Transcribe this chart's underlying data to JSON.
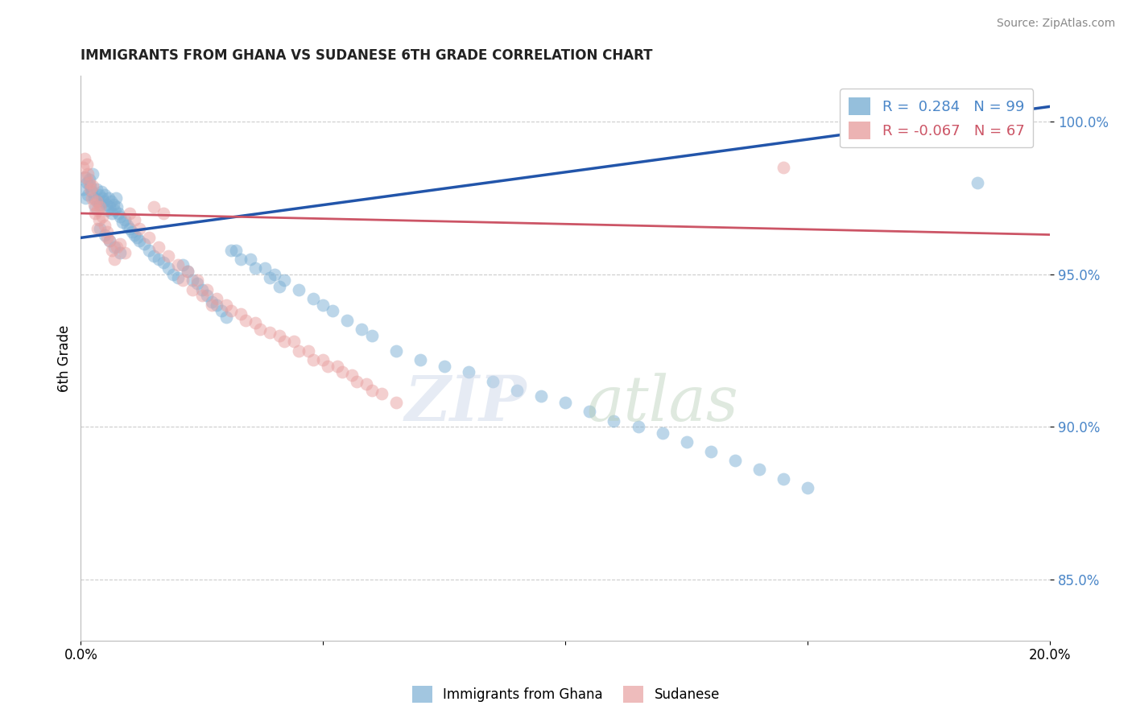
{
  "title": "IMMIGRANTS FROM GHANA VS SUDANESE 6TH GRADE CORRELATION CHART",
  "source": "Source: ZipAtlas.com",
  "ylabel": "6th Grade",
  "xlim": [
    0.0,
    20.0
  ],
  "ylim": [
    83.0,
    101.5
  ],
  "yticks": [
    85.0,
    90.0,
    95.0,
    100.0
  ],
  "ytick_labels": [
    "85.0%",
    "90.0%",
    "95.0%",
    "100.0%"
  ],
  "R_blue": 0.284,
  "N_blue": 99,
  "R_pink": -0.067,
  "N_pink": 67,
  "blue_color": "#7bafd4",
  "pink_color": "#e8a0a0",
  "blue_line_color": "#2255aa",
  "pink_line_color": "#cc5566",
  "legend_label_blue": "Immigrants from Ghana",
  "legend_label_pink": "Sudanese",
  "blue_scatter_x": [
    0.05,
    0.08,
    0.1,
    0.12,
    0.15,
    0.18,
    0.2,
    0.22,
    0.25,
    0.28,
    0.3,
    0.32,
    0.35,
    0.38,
    0.4,
    0.42,
    0.45,
    0.48,
    0.5,
    0.52,
    0.55,
    0.58,
    0.6,
    0.62,
    0.65,
    0.68,
    0.7,
    0.72,
    0.75,
    0.78,
    0.8,
    0.85,
    0.9,
    0.95,
    1.0,
    1.05,
    1.1,
    1.15,
    1.2,
    1.3,
    1.4,
    1.5,
    1.6,
    1.7,
    1.8,
    1.9,
    2.0,
    2.1,
    2.2,
    2.3,
    2.4,
    2.5,
    2.6,
    2.7,
    2.8,
    2.9,
    3.0,
    3.2,
    3.5,
    3.8,
    4.0,
    4.2,
    4.5,
    4.8,
    5.0,
    5.2,
    5.5,
    5.8,
    6.0,
    6.5,
    7.0,
    7.5,
    8.0,
    8.5,
    9.0,
    9.5,
    10.0,
    10.5,
    11.0,
    11.5,
    12.0,
    12.5,
    13.0,
    13.5,
    14.0,
    14.5,
    15.0,
    0.4,
    0.5,
    0.6,
    0.7,
    0.8,
    3.1,
    3.3,
    3.6,
    3.9,
    4.1,
    18.5,
    19.5
  ],
  "blue_scatter_y": [
    97.8,
    98.2,
    97.5,
    98.0,
    97.6,
    98.1,
    97.9,
    97.7,
    98.3,
    97.5,
    97.2,
    97.8,
    97.4,
    97.6,
    97.3,
    97.7,
    97.5,
    97.4,
    97.6,
    97.3,
    97.1,
    97.5,
    97.2,
    97.4,
    97.0,
    97.3,
    97.1,
    97.5,
    97.2,
    97.0,
    96.9,
    96.7,
    96.8,
    96.6,
    96.5,
    96.4,
    96.3,
    96.2,
    96.1,
    96.0,
    95.8,
    95.6,
    95.5,
    95.4,
    95.2,
    95.0,
    94.9,
    95.3,
    95.1,
    94.8,
    94.7,
    94.5,
    94.3,
    94.1,
    94.0,
    93.8,
    93.6,
    95.8,
    95.5,
    95.2,
    95.0,
    94.8,
    94.5,
    94.2,
    94.0,
    93.8,
    93.5,
    93.2,
    93.0,
    92.5,
    92.2,
    92.0,
    91.8,
    91.5,
    91.2,
    91.0,
    90.8,
    90.5,
    90.2,
    90.0,
    89.8,
    89.5,
    89.2,
    88.9,
    88.6,
    88.3,
    88.0,
    96.5,
    96.3,
    96.1,
    95.9,
    95.7,
    95.8,
    95.5,
    95.2,
    94.9,
    94.6,
    98.0,
    100.5
  ],
  "pink_scatter_x": [
    0.05,
    0.08,
    0.1,
    0.12,
    0.15,
    0.18,
    0.2,
    0.22,
    0.25,
    0.28,
    0.3,
    0.32,
    0.35,
    0.38,
    0.4,
    0.45,
    0.5,
    0.55,
    0.6,
    0.65,
    0.7,
    0.8,
    0.9,
    1.0,
    1.1,
    1.2,
    1.4,
    1.6,
    1.8,
    2.0,
    2.2,
    2.4,
    2.6,
    2.8,
    3.0,
    3.3,
    3.6,
    3.9,
    4.2,
    4.5,
    4.8,
    5.1,
    5.4,
    5.7,
    6.0,
    0.35,
    0.55,
    0.75,
    1.5,
    1.7,
    2.1,
    2.3,
    2.5,
    2.7,
    3.1,
    3.4,
    3.7,
    4.1,
    4.4,
    4.7,
    5.0,
    5.3,
    5.6,
    5.9,
    6.2,
    6.5,
    14.5
  ],
  "pink_scatter_y": [
    98.5,
    98.8,
    98.2,
    98.6,
    98.3,
    98.0,
    97.8,
    97.5,
    97.9,
    97.3,
    97.0,
    97.4,
    97.1,
    96.8,
    97.2,
    96.9,
    96.6,
    96.4,
    96.1,
    95.8,
    95.5,
    96.0,
    95.7,
    97.0,
    96.8,
    96.5,
    96.2,
    95.9,
    95.6,
    95.3,
    95.1,
    94.8,
    94.5,
    94.2,
    94.0,
    93.7,
    93.4,
    93.1,
    92.8,
    92.5,
    92.2,
    92.0,
    91.8,
    91.5,
    91.2,
    96.5,
    96.2,
    95.9,
    97.2,
    97.0,
    94.8,
    94.5,
    94.3,
    94.0,
    93.8,
    93.5,
    93.2,
    93.0,
    92.8,
    92.5,
    92.2,
    92.0,
    91.7,
    91.4,
    91.1,
    90.8,
    98.5
  ]
}
